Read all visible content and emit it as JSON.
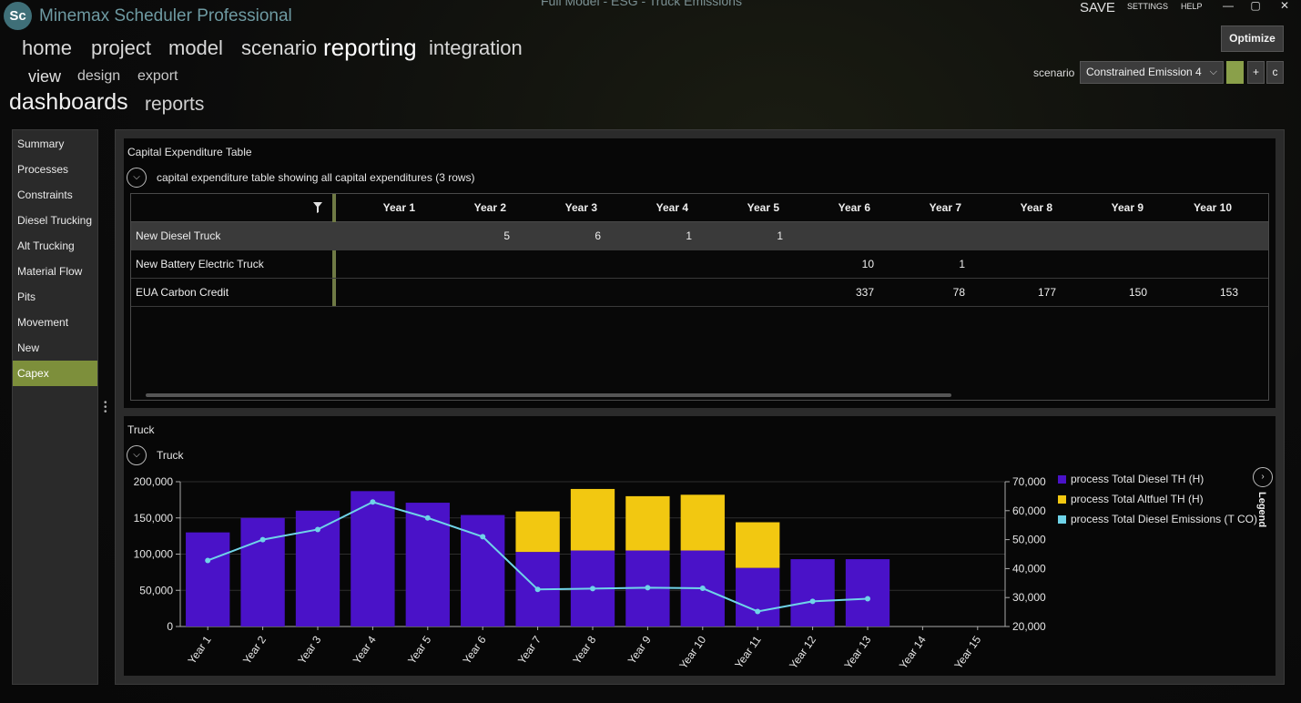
{
  "app": {
    "logo_text": "Sc",
    "title": "Minemax Scheduler Professional",
    "document_title": "Full Model - ESG - Truck Emissions"
  },
  "top_links": {
    "save": "SAVE",
    "settings": "SETTINGS",
    "help": "HELP"
  },
  "window_controls": {
    "minimize": "—",
    "maximize": "▢",
    "close": "✕"
  },
  "toolbar": {
    "optimize_label": "Optimize"
  },
  "nav": {
    "main": [
      "home",
      "project",
      "model",
      "scenario",
      "reporting",
      "integration"
    ],
    "active_main": "reporting",
    "sub": [
      "view",
      "design",
      "export"
    ],
    "third": [
      "dashboards",
      "reports"
    ]
  },
  "scenario": {
    "label": "scenario",
    "selected": "Constrained Emission 4",
    "color": "#8aa04a",
    "add_label": "+",
    "copy_label": "c"
  },
  "sidebar": {
    "items": [
      "Summary",
      "Processes",
      "Constraints",
      "Diesel Trucking",
      "Alt Trucking",
      "Material Flow",
      "Pits",
      "Movement",
      "New",
      "Capex"
    ],
    "active": "Capex"
  },
  "capex_panel": {
    "title": "Capital Expenditure Table",
    "description": "capital expenditure table showing all capital expenditures (3 rows)",
    "columns": [
      "Year 1",
      "Year 2",
      "Year 3",
      "Year 4",
      "Year 5",
      "Year 6",
      "Year 7",
      "Year 8",
      "Year 9",
      "Year 10"
    ],
    "rows": [
      {
        "name": "New Diesel Truck",
        "values": [
          "",
          "5",
          "6",
          "1",
          "1",
          "",
          "",
          "",
          "",
          ""
        ]
      },
      {
        "name": "New Battery Electric Truck",
        "values": [
          "",
          "",
          "",
          "",
          "",
          "10",
          "1",
          "",
          "",
          ""
        ]
      },
      {
        "name": "EUA Carbon Credit",
        "values": [
          "",
          "",
          "",
          "",
          "",
          "337",
          "78",
          "177",
          "150",
          "153"
        ]
      }
    ]
  },
  "truck_panel": {
    "title": "Truck",
    "subtitle": "Truck",
    "legend_label": "Legend"
  },
  "chart_data": {
    "type": "bar",
    "stacked": true,
    "categories": [
      "Year 1",
      "Year 2",
      "Year 3",
      "Year 4",
      "Year 5",
      "Year 6",
      "Year 7",
      "Year 8",
      "Year 9",
      "Year 10",
      "Year 11",
      "Year 12",
      "Year 13",
      "Year 14",
      "Year 15"
    ],
    "series": [
      {
        "name": "process Total Diesel TH (H)",
        "type": "bar",
        "axis": "left",
        "color": "#4a12c8",
        "values": [
          130000,
          150000,
          160000,
          187000,
          171000,
          154000,
          103000,
          105000,
          105000,
          105000,
          81000,
          93000,
          93000,
          0,
          0
        ]
      },
      {
        "name": "process Total Altfuel TH (H)",
        "type": "bar",
        "axis": "left",
        "color": "#f2c811",
        "values": [
          0,
          0,
          0,
          0,
          0,
          0,
          56000,
          85000,
          75000,
          77000,
          63000,
          0,
          0,
          0,
          0
        ]
      },
      {
        "name": "process Total Diesel Emissions (T CO)",
        "type": "line",
        "axis": "right",
        "color": "#6fd3e8",
        "values": [
          42800,
          50000,
          53500,
          63000,
          57500,
          51000,
          32800,
          33100,
          33400,
          33200,
          25200,
          28700,
          29600,
          null,
          null
        ]
      }
    ],
    "yleft": {
      "min": 0,
      "max": 200000,
      "ticks": [
        "0",
        "50,000",
        "100,000",
        "150,000",
        "200,000"
      ]
    },
    "yright": {
      "min": 20000,
      "max": 70000,
      "ticks": [
        "20,000",
        "30,000",
        "40,000",
        "50,000",
        "60,000",
        "70,000"
      ]
    },
    "grid": true,
    "legend_position": "right"
  }
}
